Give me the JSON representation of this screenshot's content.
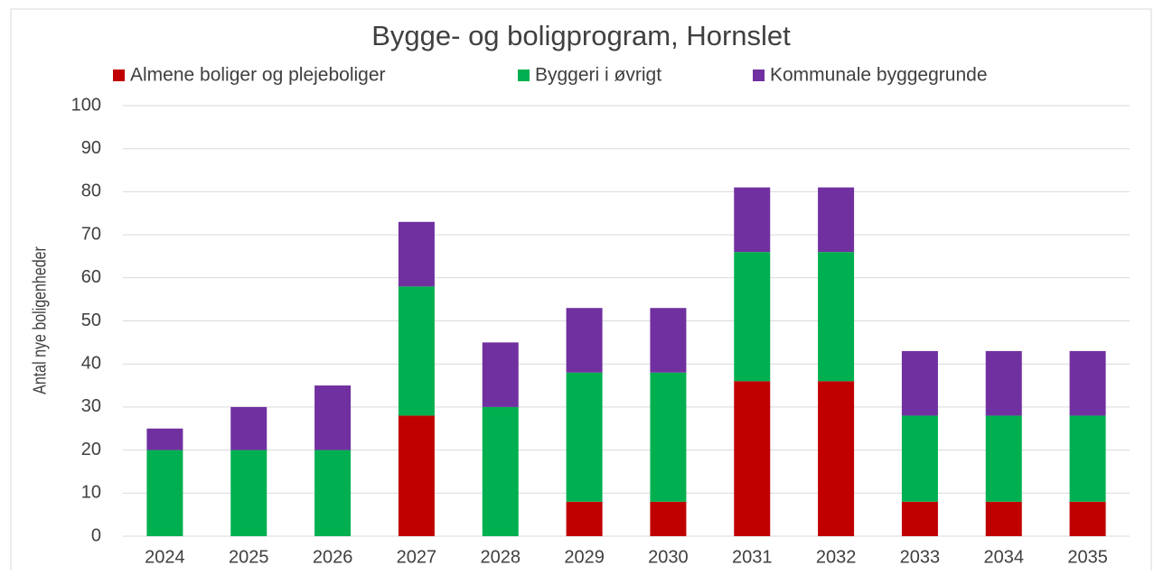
{
  "chart_data": {
    "type": "stacked_bar",
    "title": "Bygge- og boligprogram, Hornslet",
    "y_label": "Antal nye boligenheder",
    "categories": [
      "2024",
      "2025",
      "2026",
      "2027",
      "2028",
      "2029",
      "2030",
      "2031",
      "2032",
      "2033",
      "2034",
      "2035"
    ],
    "series": [
      {
        "name": "Almene boliger og plejeboliger",
        "color": "#c00000",
        "values": [
          0,
          0,
          0,
          28,
          0,
          8,
          8,
          36,
          36,
          8,
          8,
          8
        ]
      },
      {
        "name": "Byggeri i øvrigt",
        "color": "#00b050",
        "values": [
          20,
          20,
          20,
          30,
          30,
          30,
          30,
          30,
          30,
          20,
          20,
          20
        ]
      },
      {
        "name": "Kommunale byggegrunde",
        "color": "#7030a0",
        "values": [
          5,
          10,
          15,
          15,
          15,
          15,
          15,
          15,
          15,
          15,
          15,
          15
        ]
      }
    ],
    "ylim": [
      0,
      100
    ],
    "yticks": [
      0,
      10,
      20,
      30,
      40,
      50,
      60,
      70,
      80,
      90,
      100
    ],
    "grid": true,
    "legend": "top"
  }
}
